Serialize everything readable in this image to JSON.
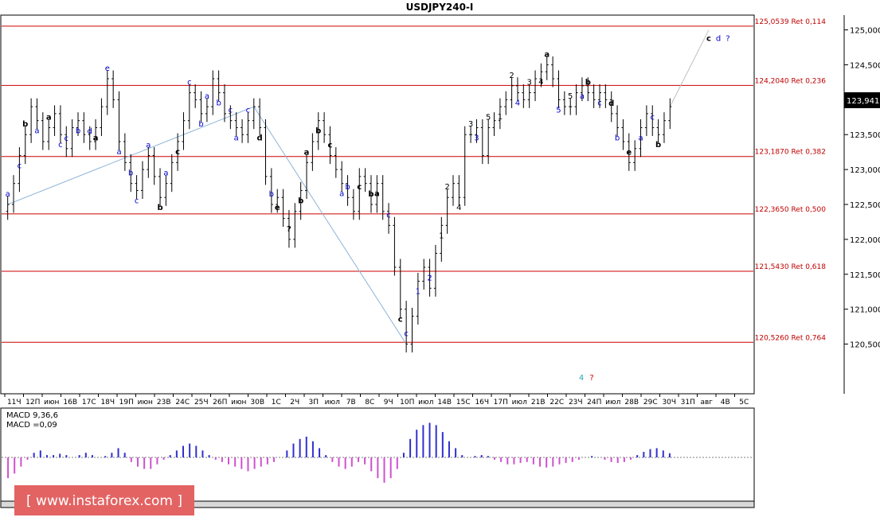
{
  "window": {
    "title": "USDJPY240-I"
  },
  "colors": {
    "background": "#ffffff",
    "candles": "#000000",
    "fib_line": "#cc0000",
    "fib_label": "#c00000",
    "wave_blue": "#0000cc",
    "wave_black": "#000000",
    "wave_teal": "#2aa5b5",
    "wave_red": "#d00000",
    "trendline": "#8fb4d8",
    "projection": "#bfbfbf",
    "macd_pos": "#3030d0",
    "macd_neg": "#d050d0"
  },
  "chart_data": {
    "type": "candlestick",
    "title": "USDJPY240-I",
    "current_price": "123,941",
    "y_ticks": [
      "125,000",
      "124,500",
      "124,000",
      "123,500",
      "123,000",
      "122,500",
      "122,000",
      "121,500",
      "121,000",
      "120,500"
    ],
    "ylim": [
      119.8,
      125.2
    ],
    "x_ticks": [
      "11Ч",
      "12П",
      "июн",
      "16В",
      "17С",
      "18Ч",
      "19П",
      "июн",
      "23В",
      "24С",
      "25Ч",
      "26П",
      "июн",
      "30В",
      "1С",
      "2Ч",
      "3П",
      "июл",
      "7В",
      "8С",
      "9Ч",
      "10П",
      "июл",
      "14В",
      "15С",
      "16Ч",
      "17П",
      "июл",
      "21В",
      "22С",
      "23Ч",
      "24П",
      "июл",
      "28В",
      "29С",
      "30Ч",
      "31П",
      "авг",
      "4В",
      "5С"
    ],
    "fib_levels": [
      {
        "price": 125.0539,
        "label": "125,0539 Ret 0,114"
      },
      {
        "price": 124.204,
        "label": "124,2040 Ret 0,236"
      },
      {
        "price": 123.187,
        "label": "123,1870 Ret 0,382"
      },
      {
        "price": 122.365,
        "label": "122,3650 Ret 0,500"
      },
      {
        "price": 121.543,
        "label": "121,5430 Ret 0,618"
      },
      {
        "price": 120.526,
        "label": "120,5260 Ret 0,764"
      }
    ],
    "close_series": [
      122.5,
      122.8,
      123.2,
      123.5,
      123.9,
      123.7,
      123.4,
      123.6,
      123.8,
      123.5,
      123.3,
      123.6,
      123.7,
      123.5,
      123.4,
      123.6,
      123.9,
      124.3,
      124.0,
      123.4,
      123.1,
      122.8,
      122.7,
      123.0,
      123.2,
      122.9,
      122.6,
      122.8,
      123.1,
      123.4,
      123.7,
      124.1,
      124.0,
      123.8,
      123.9,
      124.3,
      124.1,
      123.8,
      123.7,
      123.6,
      123.5,
      123.7,
      123.9,
      123.6,
      122.9,
      122.5,
      122.6,
      122.3,
      122.0,
      122.4,
      122.7,
      123.1,
      123.4,
      123.7,
      123.5,
      123.2,
      123.0,
      122.8,
      122.6,
      122.4,
      122.9,
      122.8,
      122.5,
      122.8,
      122.4,
      122.2,
      121.6,
      121.0,
      120.5,
      120.9,
      121.4,
      121.6,
      121.3,
      121.8,
      122.2,
      122.6,
      122.8,
      122.6,
      123.5,
      123.5,
      123.6,
      123.2,
      123.6,
      123.7,
      123.9,
      124.0,
      124.2,
      124.1,
      124.0,
      124.1,
      124.3,
      124.4,
      124.5,
      124.3,
      124.0,
      123.9,
      123.9,
      124.1,
      124.2,
      124.1,
      124.0,
      124.1,
      124.0,
      123.8,
      123.6,
      123.4,
      123.1,
      123.3,
      123.6,
      123.8,
      123.6,
      123.5,
      123.7,
      123.9
    ],
    "projection": [
      {
        "label": "c",
        "price": 125.0
      },
      {
        "label": "d",
        "price": 125.0
      }
    ],
    "waves": [
      {
        "t": "a",
        "c": "blue"
      },
      {
        "t": "c",
        "c": "blue"
      },
      {
        "t": "b",
        "c": "black"
      },
      {
        "t": "a",
        "c": "blue"
      },
      {
        "t": "a",
        "c": "black"
      },
      {
        "t": "c",
        "c": "blue"
      },
      {
        "t": "c",
        "c": "blue"
      },
      {
        "t": "b",
        "c": "blue"
      },
      {
        "t": "d",
        "c": "blue"
      },
      {
        "t": "a",
        "c": "black"
      },
      {
        "t": "e",
        "c": "blue"
      },
      {
        "t": "a",
        "c": "blue"
      },
      {
        "t": "b",
        "c": "blue"
      },
      {
        "t": "c",
        "c": "blue"
      },
      {
        "t": "a",
        "c": "blue"
      },
      {
        "t": "b",
        "c": "black"
      },
      {
        "t": "a",
        "c": "blue"
      },
      {
        "t": "c",
        "c": "black"
      },
      {
        "t": "c",
        "c": "blue"
      },
      {
        "t": "b",
        "c": "blue"
      },
      {
        "t": "a",
        "c": "blue"
      },
      {
        "t": "b",
        "c": "blue"
      },
      {
        "t": "c",
        "c": "blue"
      },
      {
        "t": "a",
        "c": "blue"
      },
      {
        "t": "c",
        "c": "blue"
      },
      {
        "t": "d",
        "c": "black"
      },
      {
        "t": "b",
        "c": "blue"
      },
      {
        "t": "e",
        "c": "black"
      },
      {
        "t": "?",
        "c": "black"
      },
      {
        "t": "b",
        "c": "black"
      },
      {
        "t": "a",
        "c": "black"
      },
      {
        "t": "b",
        "c": "black"
      },
      {
        "t": "c",
        "c": "black"
      },
      {
        "t": "a",
        "c": "blue"
      },
      {
        "t": "b",
        "c": "blue"
      },
      {
        "t": "c",
        "c": "black"
      },
      {
        "t": "b",
        "c": "black"
      },
      {
        "t": "a",
        "c": "black"
      },
      {
        "t": "c",
        "c": "blue"
      },
      {
        "t": "c",
        "c": "black"
      },
      {
        "t": "c",
        "c": "blue"
      },
      {
        "t": "1",
        "c": "blue"
      },
      {
        "t": "2",
        "c": "blue"
      },
      {
        "t": "1",
        "c": "black"
      },
      {
        "t": "2",
        "c": "black"
      },
      {
        "t": "4",
        "c": "black"
      },
      {
        "t": "3",
        "c": "black"
      },
      {
        "t": "3",
        "c": "blue"
      },
      {
        "t": "5",
        "c": "black"
      },
      {
        "t": "1",
        "c": "black"
      },
      {
        "t": "2",
        "c": "black"
      },
      {
        "t": "4",
        "c": "blue"
      },
      {
        "t": "3",
        "c": "black"
      },
      {
        "t": "4",
        "c": "black"
      },
      {
        "t": "a",
        "c": "black"
      },
      {
        "t": "5",
        "c": "blue"
      },
      {
        "t": "5",
        "c": "black"
      },
      {
        "t": "a",
        "c": "blue"
      },
      {
        "t": "b",
        "c": "black"
      },
      {
        "t": "c",
        "c": "blue"
      },
      {
        "t": "d",
        "c": "black"
      },
      {
        "t": "b",
        "c": "blue"
      },
      {
        "t": "e",
        "c": "black"
      },
      {
        "t": "a",
        "c": "blue"
      },
      {
        "t": "c",
        "c": "blue"
      },
      {
        "t": "b",
        "c": "black"
      },
      {
        "t": "4",
        "c": "teal"
      },
      {
        "t": "?",
        "c": "red"
      },
      {
        "t": "c",
        "c": "black"
      },
      {
        "t": "d",
        "c": "blue"
      },
      {
        "t": "?",
        "c": "blue"
      }
    ],
    "macd": {
      "label": "MACD 9,36,6",
      "value_label": "MACD =0,09",
      "series": [
        -0.45,
        -0.35,
        -0.2,
        -0.05,
        0.1,
        0.15,
        0.05,
        0.05,
        0.08,
        0.05,
        0.0,
        0.05,
        0.1,
        0.05,
        0.0,
        0.03,
        0.1,
        0.2,
        0.1,
        -0.1,
        -0.2,
        -0.25,
        -0.25,
        -0.15,
        -0.05,
        0.05,
        0.15,
        0.25,
        0.3,
        0.25,
        0.15,
        0.05,
        -0.05,
        -0.1,
        -0.15,
        -0.2,
        -0.25,
        -0.3,
        -0.25,
        -0.2,
        -0.15,
        -0.1,
        0.0,
        0.15,
        0.3,
        0.4,
        0.45,
        0.35,
        0.2,
        0.05,
        -0.1,
        -0.2,
        -0.25,
        -0.2,
        -0.1,
        -0.15,
        -0.3,
        -0.45,
        -0.55,
        -0.45,
        -0.25,
        0.1,
        0.4,
        0.6,
        0.7,
        0.75,
        0.7,
        0.55,
        0.35,
        0.2,
        0.05,
        0.0,
        0.03,
        0.05,
        0.03,
        -0.05,
        -0.1,
        -0.15,
        -0.15,
        -0.12,
        -0.1,
        -0.15,
        -0.2,
        -0.22,
        -0.2,
        -0.15,
        -0.12,
        -0.1,
        -0.05,
        0.0,
        0.03,
        0.0,
        -0.05,
        -0.1,
        -0.12,
        -0.1,
        -0.05,
        0.05,
        0.12,
        0.18,
        0.2,
        0.15,
        0.09
      ]
    }
  },
  "watermark": {
    "text": "[ www.instaforex.com ]"
  }
}
